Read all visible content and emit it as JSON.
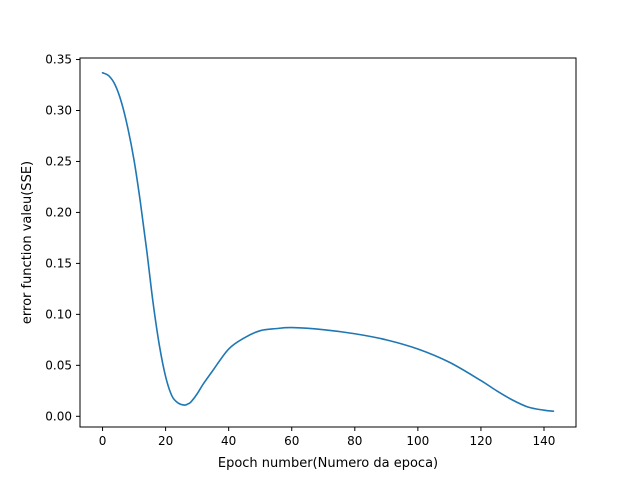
{
  "chart_data": {
    "type": "line",
    "title": "",
    "xlabel": "Epoch number(Numero da epoca)",
    "ylabel": "error function valeu(SSE)",
    "xlim": [
      -7.15,
      150.15
    ],
    "ylim": [
      -0.0105,
      0.3515
    ],
    "xticks": [
      0,
      20,
      40,
      60,
      80,
      100,
      120,
      140
    ],
    "xtick_labels": [
      "0",
      "20",
      "40",
      "60",
      "80",
      "100",
      "120",
      "140"
    ],
    "yticks": [
      0.0,
      0.05,
      0.1,
      0.15,
      0.2,
      0.25,
      0.3,
      0.35
    ],
    "ytick_labels": [
      "0.00",
      "0.05",
      "0.10",
      "0.15",
      "0.20",
      "0.25",
      "0.30",
      "0.35"
    ],
    "grid": false,
    "legend": "none",
    "series": [
      {
        "color": "#1f77b4",
        "x": [
          0,
          2,
          4,
          6,
          8,
          10,
          12,
          14,
          16,
          18,
          20,
          22,
          24,
          26,
          27,
          28,
          30,
          32,
          35,
          40,
          45,
          50,
          55,
          60,
          70,
          80,
          90,
          100,
          110,
          120,
          125,
          130,
          135,
          140,
          143
        ],
        "y": [
          0.337,
          0.334,
          0.325,
          0.308,
          0.283,
          0.251,
          0.21,
          0.163,
          0.112,
          0.07,
          0.039,
          0.02,
          0.013,
          0.011,
          0.012,
          0.014,
          0.022,
          0.032,
          0.045,
          0.066,
          0.077,
          0.084,
          0.086,
          0.087,
          0.085,
          0.081,
          0.075,
          0.066,
          0.053,
          0.035,
          0.025,
          0.016,
          0.009,
          0.006,
          0.005
        ]
      }
    ]
  }
}
